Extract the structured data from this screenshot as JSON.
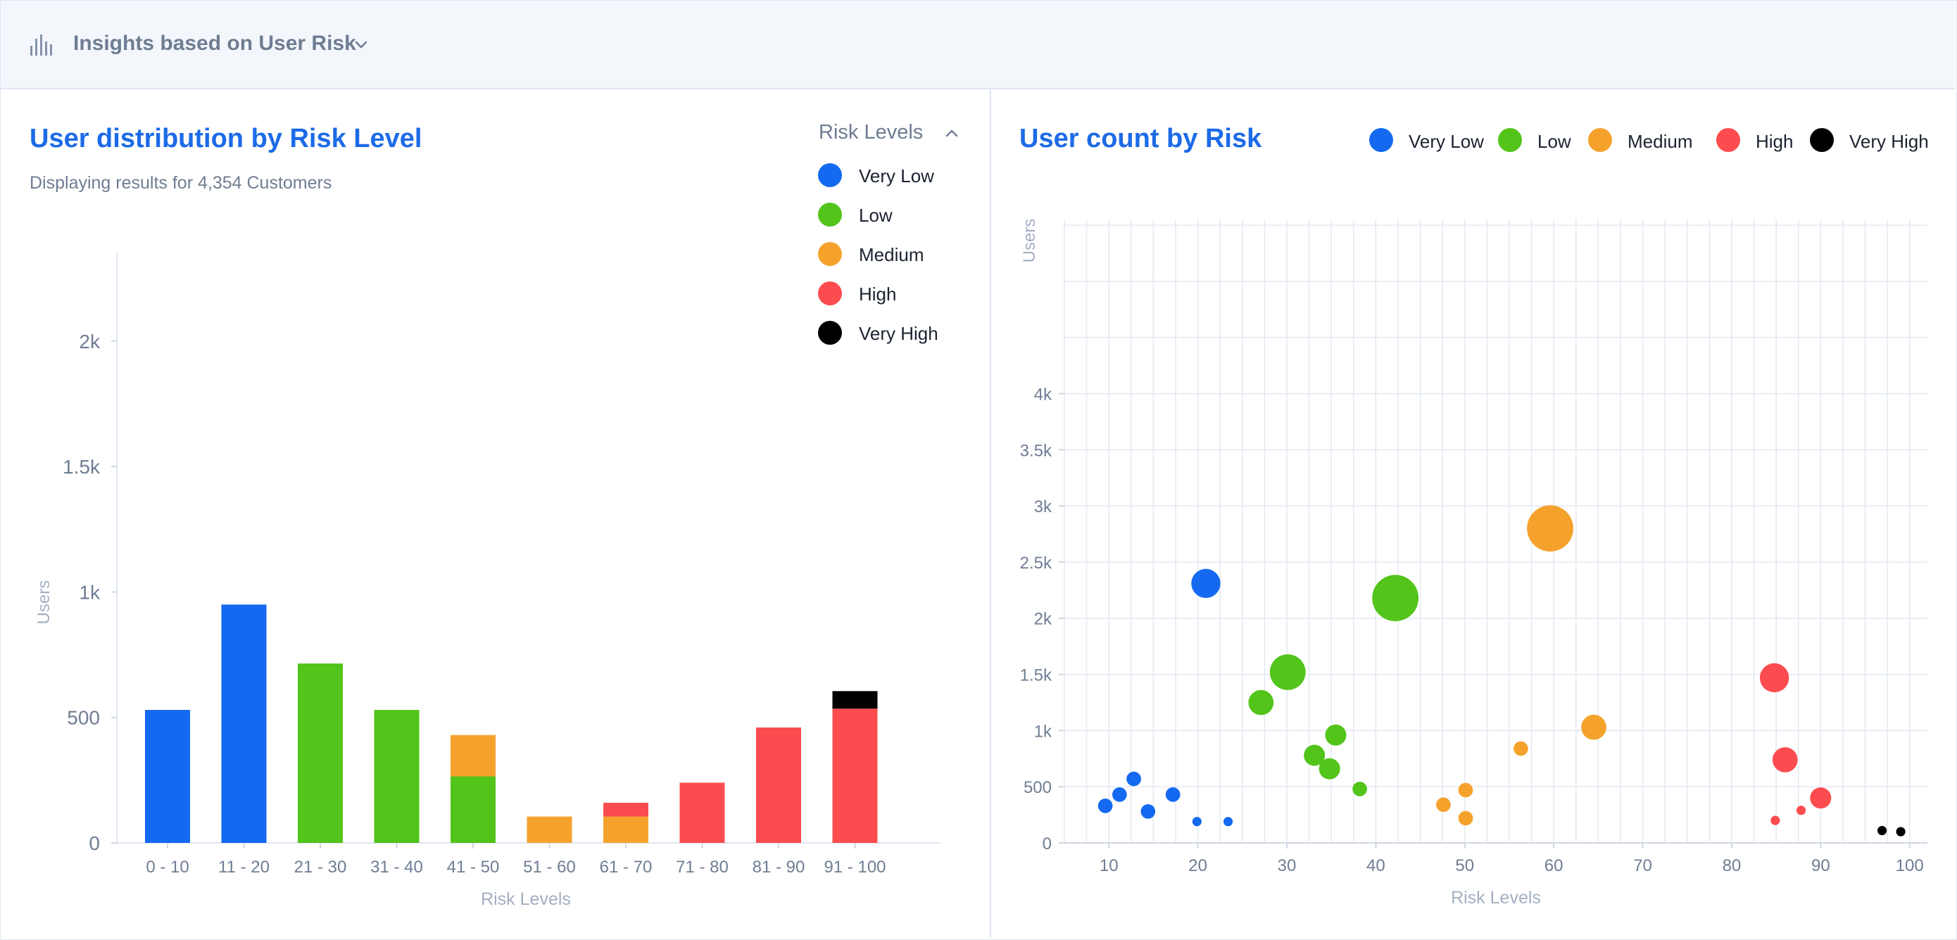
{
  "header": {
    "title": "Insights based on User Risk",
    "icon": "bar-chart-icon",
    "dropdown_icon": "chevron-down-icon"
  },
  "colors": {
    "very_low": "#1469f0",
    "low": "#52c41a",
    "medium": "#f5a22d",
    "high": "#fc4c4f",
    "very_high": "#000000",
    "title": "#1c6be8",
    "muted": "#6f7d93"
  },
  "left_panel": {
    "title": "User distribution by Risk Level",
    "subtitle": "Displaying results for 4,354 Customers",
    "legend_title": "Risk Levels",
    "legend_toggle_icon": "chevron-up-icon",
    "legend": [
      {
        "label": "Very Low",
        "color": "#1469f0"
      },
      {
        "label": "Low",
        "color": "#52c41a"
      },
      {
        "label": "Medium",
        "color": "#f5a22d"
      },
      {
        "label": "High",
        "color": "#fc4c4f"
      },
      {
        "label": "Very High",
        "color": "#000000"
      }
    ]
  },
  "right_panel": {
    "title": "User count by Risk",
    "legend": [
      {
        "label": "Very Low",
        "color": "#1469f0"
      },
      {
        "label": "Low",
        "color": "#52c41a"
      },
      {
        "label": "Medium",
        "color": "#f5a22d"
      },
      {
        "label": "High",
        "color": "#fc4c4f"
      },
      {
        "label": "Very High",
        "color": "#000000"
      }
    ]
  },
  "chart_data": [
    {
      "type": "bar",
      "stacked": true,
      "title": "User distribution by Risk Level",
      "xlabel": "Risk Levels",
      "ylabel": "Users",
      "ylim": [
        0,
        2350
      ],
      "yticks": [
        0,
        500,
        1000,
        1500,
        2000
      ],
      "ytick_labels": [
        "0",
        "500",
        "1k",
        "1.5k",
        "2k"
      ],
      "grid": false,
      "categories": [
        "0 - 10",
        "11 - 20",
        "21 - 30",
        "31 - 40",
        "41 - 50",
        "51 - 60",
        "61 - 70",
        "71 - 80",
        "81 - 90",
        "91 - 100"
      ],
      "series": [
        {
          "name": "Very Low",
          "color": "#1469f0",
          "values": [
            530,
            950,
            0,
            0,
            0,
            0,
            0,
            0,
            0,
            0
          ]
        },
        {
          "name": "Low",
          "color": "#52c41a",
          "values": [
            0,
            0,
            715,
            530,
            265,
            0,
            0,
            0,
            0,
            0
          ]
        },
        {
          "name": "Medium",
          "color": "#f5a22d",
          "values": [
            0,
            0,
            0,
            0,
            165,
            105,
            105,
            0,
            0,
            0
          ]
        },
        {
          "name": "High",
          "color": "#fc4c4f",
          "values": [
            0,
            0,
            0,
            0,
            0,
            0,
            55,
            240,
            460,
            535
          ]
        },
        {
          "name": "Very High",
          "color": "#000000",
          "values": [
            0,
            0,
            0,
            0,
            0,
            0,
            0,
            0,
            0,
            70
          ]
        }
      ]
    },
    {
      "type": "scatter",
      "bubble": true,
      "title": "User count by Risk",
      "xlabel": "Risk Levels",
      "ylabel": "Users",
      "xlim": [
        5,
        102
      ],
      "ylim": [
        0,
        5550
      ],
      "xticks": [
        10,
        20,
        30,
        40,
        50,
        60,
        70,
        80,
        90,
        100
      ],
      "yticks": [
        0,
        500,
        1000,
        1500,
        2000,
        2500,
        3000,
        3500,
        4000
      ],
      "ytick_labels": [
        "0",
        "500",
        "1k",
        "1.5k",
        "2k",
        "2.5k",
        "3k",
        "3.5k",
        "4k"
      ],
      "grid": true,
      "legend_position": "top-right",
      "series": [
        {
          "name": "Very Low",
          "color": "#1469f0",
          "points": [
            {
              "x": 9.6,
              "y": 330,
              "r": 1.1
            },
            {
              "x": 11.2,
              "y": 430,
              "r": 1.1
            },
            {
              "x": 12.8,
              "y": 570,
              "r": 1.1
            },
            {
              "x": 14.4,
              "y": 280,
              "r": 1.1
            },
            {
              "x": 17.2,
              "y": 430,
              "r": 1.1
            },
            {
              "x": 19.9,
              "y": 190,
              "r": 0.7
            },
            {
              "x": 20.9,
              "y": 2310,
              "r": 2.2
            },
            {
              "x": 23.4,
              "y": 190,
              "r": 0.7
            }
          ]
        },
        {
          "name": "Low",
          "color": "#52c41a",
          "points": [
            {
              "x": 27.1,
              "y": 1250,
              "r": 1.9
            },
            {
              "x": 30.1,
              "y": 1520,
              "r": 2.7
            },
            {
              "x": 33.1,
              "y": 780,
              "r": 1.6
            },
            {
              "x": 34.8,
              "y": 660,
              "r": 1.6
            },
            {
              "x": 35.5,
              "y": 960,
              "r": 1.6
            },
            {
              "x": 38.2,
              "y": 480,
              "r": 1.1
            },
            {
              "x": 42.2,
              "y": 2180,
              "r": 3.5
            }
          ]
        },
        {
          "name": "Medium",
          "color": "#f5a22d",
          "points": [
            {
              "x": 47.6,
              "y": 340,
              "r": 1.1
            },
            {
              "x": 50.1,
              "y": 470,
              "r": 1.1
            },
            {
              "x": 50.1,
              "y": 220,
              "r": 1.1
            },
            {
              "x": 56.3,
              "y": 840,
              "r": 1.1
            },
            {
              "x": 59.6,
              "y": 2800,
              "r": 3.5
            },
            {
              "x": 64.5,
              "y": 1030,
              "r": 1.9
            }
          ]
        },
        {
          "name": "High",
          "color": "#fc4c4f",
          "points": [
            {
              "x": 84.8,
              "y": 1470,
              "r": 2.2
            },
            {
              "x": 84.9,
              "y": 200,
              "r": 0.7
            },
            {
              "x": 86,
              "y": 740,
              "r": 1.9
            },
            {
              "x": 87.8,
              "y": 290,
              "r": 0.7
            },
            {
              "x": 90,
              "y": 400,
              "r": 1.6
            }
          ]
        },
        {
          "name": "Very High",
          "color": "#000000",
          "points": [
            {
              "x": 96.9,
              "y": 110,
              "r": 0.7
            },
            {
              "x": 99,
              "y": 100,
              "r": 0.7
            }
          ]
        }
      ]
    }
  ]
}
